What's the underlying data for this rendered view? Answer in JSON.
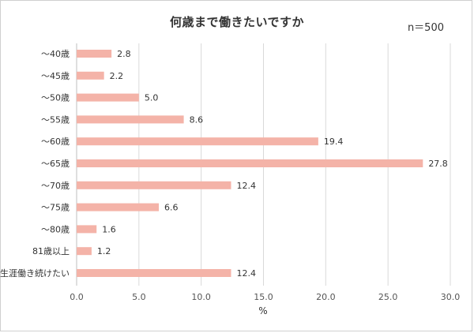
{
  "title": "何歳まで働きたいですか",
  "sample_size": "n＝500",
  "chart_data": {
    "type": "bar",
    "orientation": "horizontal",
    "categories": [
      "～40歳",
      "～45歳",
      "～50歳",
      "～55歳",
      "～60歳",
      "～65歳",
      "～70歳",
      "～75歳",
      "～80歳",
      "81歳以上",
      "生涯働き続けたい"
    ],
    "values": [
      2.8,
      2.2,
      5.0,
      8.6,
      19.4,
      27.8,
      12.4,
      6.6,
      1.6,
      1.2,
      12.4
    ],
    "value_labels": [
      "2.8",
      "2.2",
      "5.0",
      "8.6",
      "19.4",
      "27.8",
      "12.4",
      "6.6",
      "1.6",
      "1.2",
      "12.4"
    ],
    "xlim": [
      0,
      30
    ],
    "x_ticks": [
      "0.0",
      "5.0",
      "10.0",
      "15.0",
      "20.0",
      "25.0",
      "30.0"
    ],
    "xlabel": "%",
    "grid": "vertical",
    "bar_color": "#f4b3a8"
  }
}
